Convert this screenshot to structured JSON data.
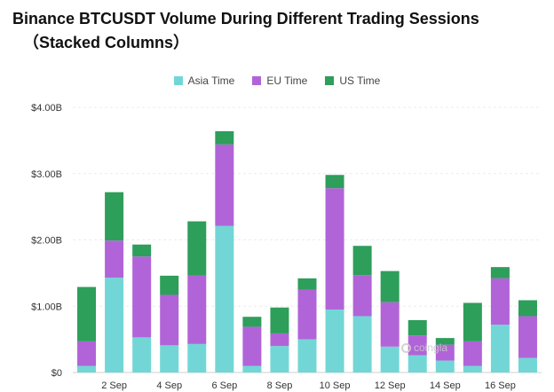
{
  "header": {
    "title_line1": "Binance BTCUSDT Volume During Different Trading Sessions",
    "title_line2": "（Stacked Columns）"
  },
  "legend": [
    {
      "label": "Asia Time",
      "color": "#72d6d6"
    },
    {
      "label": "EU Time",
      "color": "#b164d8"
    },
    {
      "label": "US Time",
      "color": "#2e9e5b"
    }
  ],
  "watermark": {
    "text": "coingla"
  },
  "chart_data": {
    "type": "bar",
    "stacked": true,
    "title": "Binance BTCUSDT Volume During Different Trading Sessions （Stacked Columns）",
    "categories": [
      "1 Sep",
      "2 Sep",
      "3 Sep",
      "4 Sep",
      "5 Sep",
      "6 Sep",
      "7 Sep",
      "8 Sep",
      "9 Sep",
      "10 Sep",
      "11 Sep",
      "12 Sep",
      "13 Sep",
      "14 Sep",
      "15 Sep",
      "16 Sep",
      "17 Sep"
    ],
    "x_tick_labels": [
      "2 Sep",
      "4 Sep",
      "6 Sep",
      "8 Sep",
      "10 Sep",
      "12 Sep",
      "14 Sep",
      "16 Sep"
    ],
    "y_tick_labels": [
      "$0",
      "$1.00B",
      "$2.00B",
      "$3.00B",
      "$4.00B"
    ],
    "ylim": [
      0,
      4.0
    ],
    "y_unit": "billion USD",
    "grid": true,
    "legend_position": "top",
    "series": [
      {
        "name": "Asia Time",
        "color": "#72d6d6",
        "values": [
          0.1,
          1.43,
          0.53,
          0.41,
          0.43,
          2.21,
          0.1,
          0.4,
          0.5,
          0.95,
          0.85,
          0.39,
          0.26,
          0.18,
          0.1,
          0.72,
          0.22
        ]
      },
      {
        "name": "EU Time",
        "color": "#b164d8",
        "values": [
          0.37,
          0.56,
          1.22,
          0.76,
          1.03,
          1.23,
          0.59,
          0.19,
          0.75,
          1.83,
          0.62,
          0.67,
          0.3,
          0.24,
          0.37,
          0.7,
          0.63
        ]
      },
      {
        "name": "US Time",
        "color": "#2e9e5b",
        "values": [
          0.82,
          0.73,
          0.18,
          0.29,
          0.82,
          0.2,
          0.15,
          0.39,
          0.17,
          0.2,
          0.44,
          0.47,
          0.23,
          0.1,
          0.58,
          0.17,
          0.24
        ]
      }
    ]
  }
}
